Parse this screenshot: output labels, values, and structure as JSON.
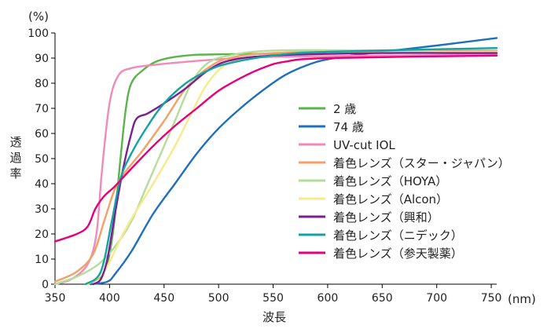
{
  "chart_data": {
    "type": "line",
    "ylabel": "透\n過\n率",
    "xlabel": "波長",
    "y_unit": "(%)",
    "x_unit": "(nm)",
    "xlim": [
      350,
      755
    ],
    "ylim": [
      0,
      100
    ],
    "x_ticks": [
      350,
      400,
      450,
      500,
      550,
      600,
      650,
      700,
      750
    ],
    "y_ticks": [
      0,
      10,
      20,
      30,
      40,
      50,
      60,
      70,
      80,
      90,
      100
    ],
    "grid": false,
    "legend_position": "right-middle",
    "series": [
      {
        "name": "2 歳",
        "color": "#5ab44b",
        "points": [
          [
            380,
            0
          ],
          [
            395,
            5
          ],
          [
            403,
            20
          ],
          [
            410,
            50
          ],
          [
            415,
            70
          ],
          [
            420,
            80
          ],
          [
            430,
            85
          ],
          [
            445,
            89
          ],
          [
            470,
            91
          ],
          [
            500,
            91.5
          ],
          [
            600,
            92
          ],
          [
            755,
            92.5
          ]
        ]
      },
      {
        "name": "74 歳",
        "color": "#1f6fbf",
        "points": [
          [
            383,
            0
          ],
          [
            398,
            1
          ],
          [
            405,
            4
          ],
          [
            420,
            13
          ],
          [
            440,
            28
          ],
          [
            460,
            40
          ],
          [
            480,
            52
          ],
          [
            500,
            62
          ],
          [
            520,
            70
          ],
          [
            540,
            77
          ],
          [
            560,
            83
          ],
          [
            580,
            87
          ],
          [
            600,
            89.5
          ],
          [
            640,
            92
          ],
          [
            700,
            95
          ],
          [
            755,
            98
          ]
        ]
      },
      {
        "name": "UV-cut IOL",
        "color": "#f28ab8",
        "points": [
          [
            350,
            0
          ],
          [
            365,
            2
          ],
          [
            380,
            8
          ],
          [
            388,
            20
          ],
          [
            393,
            45
          ],
          [
            400,
            72
          ],
          [
            408,
            83
          ],
          [
            420,
            86
          ],
          [
            445,
            87.5
          ],
          [
            470,
            88.5
          ],
          [
            500,
            89.5
          ],
          [
            550,
            90.5
          ],
          [
            650,
            91
          ],
          [
            755,
            91.5
          ]
        ]
      },
      {
        "name": "着色レンズ（スター・ジャパン）",
        "color": "#f4a066",
        "points": [
          [
            350,
            1
          ],
          [
            370,
            5
          ],
          [
            385,
            12
          ],
          [
            395,
            25
          ],
          [
            405,
            38
          ],
          [
            415,
            45
          ],
          [
            430,
            53
          ],
          [
            450,
            65
          ],
          [
            470,
            78
          ],
          [
            490,
            86
          ],
          [
            510,
            90
          ],
          [
            550,
            92
          ],
          [
            650,
            93
          ],
          [
            755,
            93
          ]
        ]
      },
      {
        "name": "着色レンズ（HOYA）",
        "color": "#b5dd9a",
        "points": [
          [
            350,
            0
          ],
          [
            370,
            3
          ],
          [
            390,
            8
          ],
          [
            405,
            15
          ],
          [
            420,
            25
          ],
          [
            435,
            40
          ],
          [
            450,
            55
          ],
          [
            460,
            65
          ],
          [
            475,
            80
          ],
          [
            490,
            88
          ],
          [
            510,
            91
          ],
          [
            550,
            93
          ],
          [
            650,
            93
          ],
          [
            755,
            92
          ]
        ]
      },
      {
        "name": "着色レンズ（Alcon）",
        "color": "#f5ea8c",
        "points": [
          [
            380,
            0
          ],
          [
            395,
            5
          ],
          [
            410,
            18
          ],
          [
            420,
            26
          ],
          [
            440,
            40
          ],
          [
            460,
            55
          ],
          [
            475,
            68
          ],
          [
            490,
            80
          ],
          [
            510,
            88
          ],
          [
            550,
            91
          ],
          [
            600,
            92
          ],
          [
            755,
            92.5
          ]
        ]
      },
      {
        "name": "着色レンズ（興和）",
        "color": "#7a1f92",
        "points": [
          [
            385,
            0
          ],
          [
            392,
            2
          ],
          [
            398,
            10
          ],
          [
            405,
            28
          ],
          [
            412,
            45
          ],
          [
            420,
            60
          ],
          [
            425,
            66
          ],
          [
            435,
            68
          ],
          [
            450,
            72
          ],
          [
            470,
            78
          ],
          [
            490,
            85
          ],
          [
            510,
            89
          ],
          [
            550,
            91
          ],
          [
            650,
            92
          ],
          [
            755,
            92
          ]
        ]
      },
      {
        "name": "着色レンズ（ニデック）",
        "color": "#13a3a3",
        "points": [
          [
            378,
            0
          ],
          [
            392,
            5
          ],
          [
            402,
            25
          ],
          [
            410,
            42
          ],
          [
            420,
            52
          ],
          [
            435,
            63
          ],
          [
            450,
            72
          ],
          [
            470,
            80
          ],
          [
            490,
            85
          ],
          [
            510,
            88
          ],
          [
            550,
            91
          ],
          [
            600,
            92.5
          ],
          [
            755,
            94
          ]
        ]
      },
      {
        "name": "着色レンズ（参天製薬）",
        "color": "#e6007a",
        "points": [
          [
            350,
            17
          ],
          [
            370,
            20
          ],
          [
            380,
            23
          ],
          [
            387,
            30
          ],
          [
            395,
            35
          ],
          [
            405,
            39
          ],
          [
            420,
            46
          ],
          [
            440,
            55
          ],
          [
            460,
            63
          ],
          [
            480,
            70
          ],
          [
            500,
            77
          ],
          [
            520,
            82
          ],
          [
            540,
            86
          ],
          [
            560,
            88.5
          ],
          [
            600,
            90
          ],
          [
            755,
            91
          ]
        ]
      }
    ]
  }
}
